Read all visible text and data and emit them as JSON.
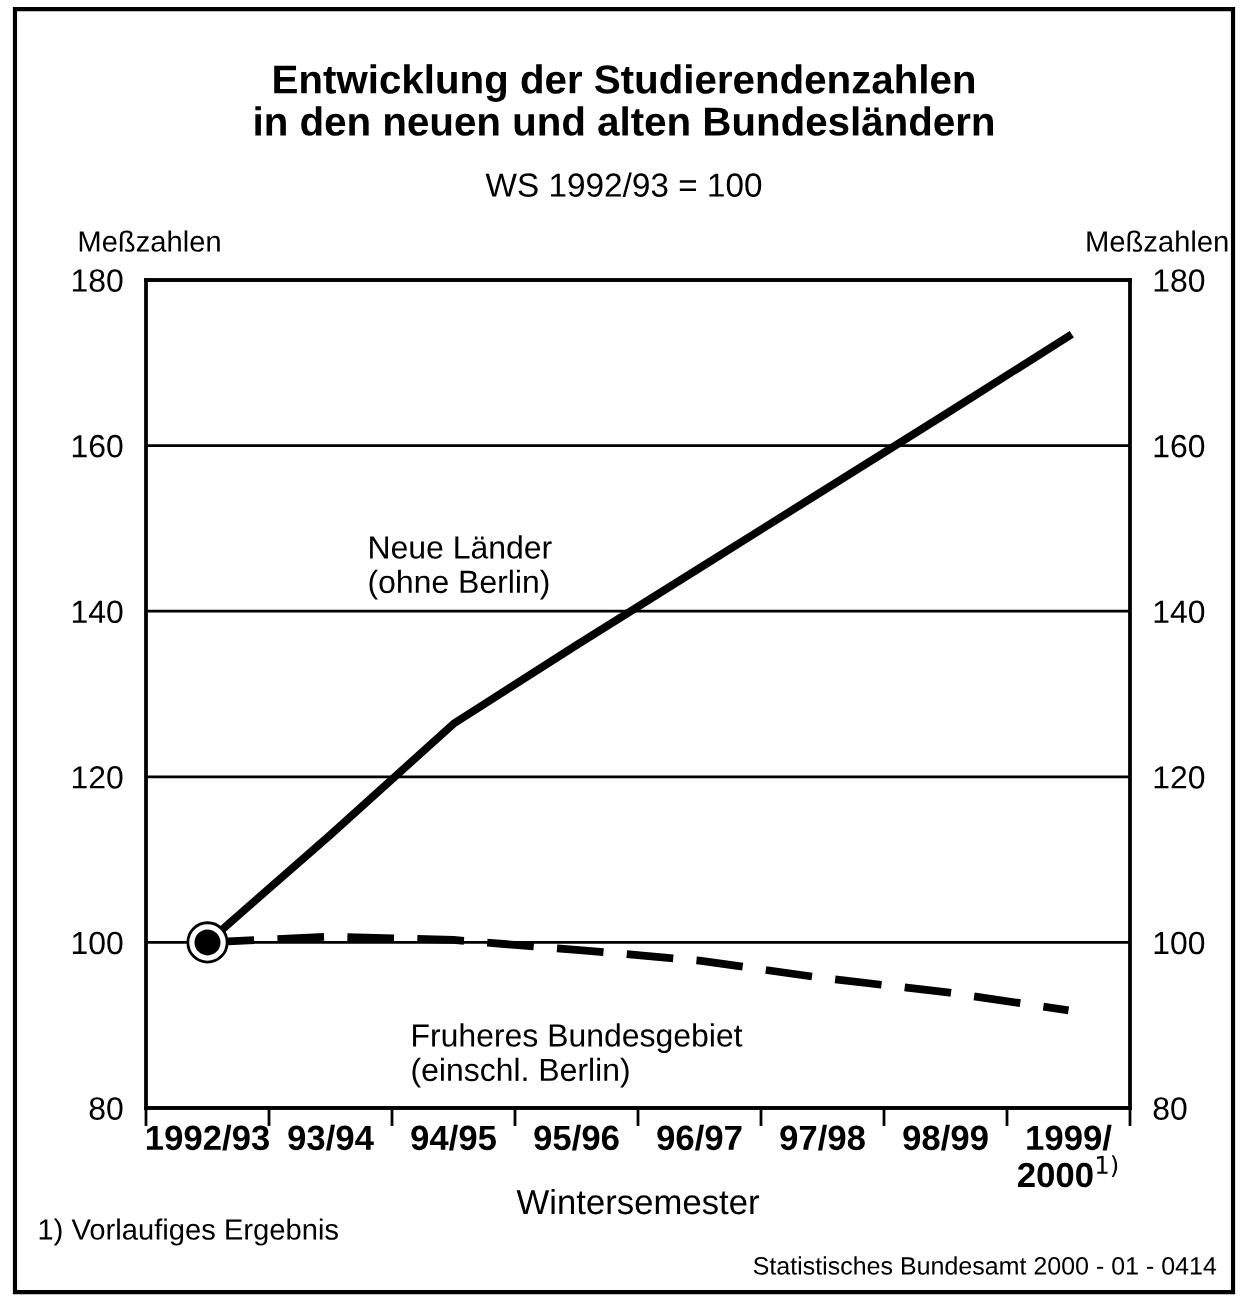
{
  "chart_data": {
    "type": "line",
    "title": "Entwicklung der Studierendenzahlen\nin den neuen und alten Bundesländern",
    "subtitle": "WS 1992/93 = 100",
    "xlabel": "Wintersemester",
    "ylabel": "Meßzahlen",
    "y2label": "Meßzahlen",
    "categories": [
      "1992/93",
      "93/94",
      "94/95",
      "95/96",
      "96/97",
      "97/98",
      "98/99",
      "1999/\n2000$^{1)}$"
    ],
    "series": [
      {
        "name": "Neue Länder\n(ohne Berlin)",
        "color": "#000000",
        "line_style": "solid",
        "values": [
          100,
          113,
          126.4,
          135.9,
          145.2,
          154.5,
          163.8,
          173.2
        ]
      },
      {
        "name": "Fruheres Bundesgebiet\n(einschl. Berlin)",
        "color": "#000000",
        "line_style": "dashed",
        "values": [
          100,
          100.7,
          100.3,
          99.1,
          97.8,
          95.7,
          94,
          91.8
        ]
      },
      {
        "type": "scatter",
        "color": "#000000",
        "marker": "circle",
        "values": [
          100,
          null,
          null,
          null,
          null,
          null,
          null,
          null
        ]
      }
    ],
    "ylim": [
      80,
      180
    ],
    "yticks": [
      80,
      100,
      120,
      140,
      160,
      180
    ],
    "y2lim": [
      80,
      180
    ],
    "y2ticks": [
      80,
      100,
      120,
      140,
      160,
      180
    ],
    "grid": "y",
    "annotations": [
      "1) Vorlaufiges Ergebnis",
      "Statistisches Bundesamt 2000 - 01 - 0414"
    ]
  }
}
